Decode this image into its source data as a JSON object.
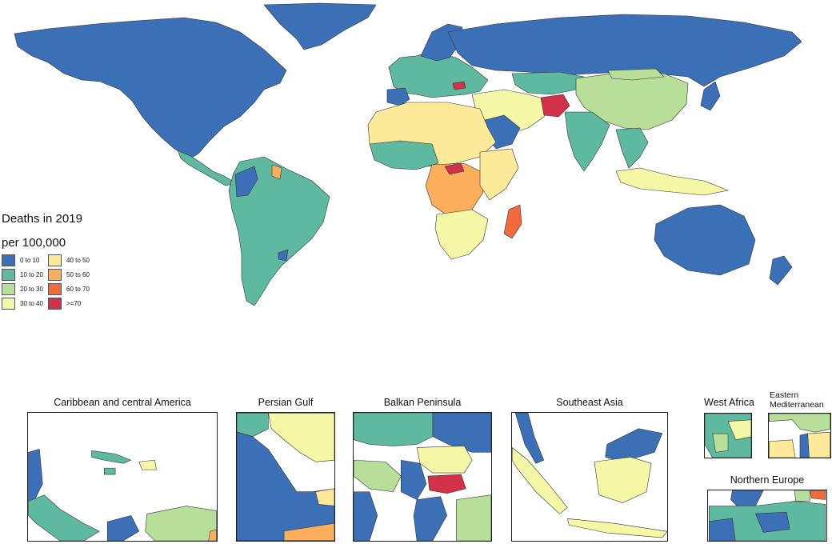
{
  "legend": {
    "title_line1": "Deaths in 2019",
    "title_line2": "per 100,000",
    "items": [
      {
        "label": "0 to 10",
        "color": "#3b6fb6"
      },
      {
        "label": "40 to 50",
        "color": "#fde99a"
      },
      {
        "label": "10 to 20",
        "color": "#5fb9a0"
      },
      {
        "label": "50 to 60",
        "color": "#fbae5c"
      },
      {
        "label": "20 to 30",
        "color": "#b7df9a"
      },
      {
        "label": "60 to 70",
        "color": "#ef6a3d"
      },
      {
        "label": "30 to 40",
        "color": "#f3f7a6"
      },
      {
        "label": ">=70",
        "color": "#d3304a"
      }
    ]
  },
  "insets": {
    "caribbean": "Caribbean and central America",
    "persian_gulf": "Persian Gulf",
    "balkan": "Balkan Peninsula",
    "southeast_asia": "Southeast Asia",
    "west_africa": "West Africa",
    "east_med": "Eastern Mediterranean",
    "northern_europe": "Northern Europe"
  }
}
